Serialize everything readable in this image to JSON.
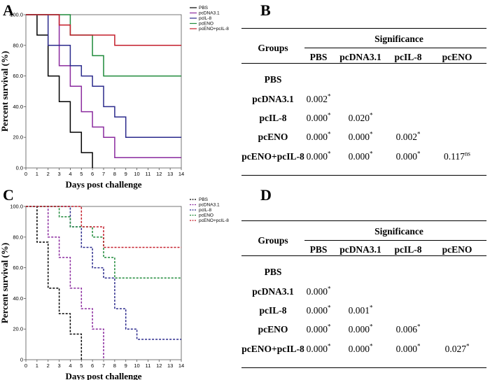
{
  "panels": {
    "A": "A",
    "B": "B",
    "C": "C",
    "D": "D"
  },
  "chart_data": [
    {
      "type": "line",
      "panel": "A",
      "style": "solid",
      "xlabel": "Days post challenge",
      "ylabel": "Percent survival (%)",
      "xlim": [
        0,
        14
      ],
      "ylim": [
        0,
        100
      ],
      "xticks": [
        "0",
        "1",
        "2",
        "3",
        "4",
        "5",
        "6",
        "7",
        "8",
        "9",
        "10",
        "11",
        "12",
        "13",
        "14"
      ],
      "yticks": [
        "0.0",
        "20.0",
        "40.0",
        "60.0",
        "80.0",
        "100.0"
      ],
      "ytick_values": [
        0,
        20,
        40,
        60,
        80,
        100
      ],
      "series": [
        {
          "name": "PBS",
          "color": "#000000",
          "points": [
            [
              0,
              100
            ],
            [
              1,
              100
            ],
            [
              1,
              86.7
            ],
            [
              2,
              86.7
            ],
            [
              2,
              60
            ],
            [
              3,
              60
            ],
            [
              3,
              43.3
            ],
            [
              4,
              43.3
            ],
            [
              4,
              23.3
            ],
            [
              5,
              23.3
            ],
            [
              5,
              10
            ],
            [
              6,
              10
            ],
            [
              6,
              0
            ]
          ]
        },
        {
          "name": "pcDNA3.1",
          "color": "#8a2a9e",
          "points": [
            [
              0,
              100
            ],
            [
              3,
              100
            ],
            [
              3,
              66.7
            ],
            [
              4,
              66.7
            ],
            [
              4,
              53.3
            ],
            [
              5,
              53.3
            ],
            [
              5,
              36.7
            ],
            [
              6,
              36.7
            ],
            [
              6,
              26.7
            ],
            [
              7,
              26.7
            ],
            [
              7,
              20
            ],
            [
              8,
              20
            ],
            [
              8,
              6.7
            ],
            [
              14,
              6.7
            ]
          ]
        },
        {
          "name": "pcIL-8",
          "color": "#2b2a8c",
          "points": [
            [
              0,
              100
            ],
            [
              2,
              100
            ],
            [
              2,
              80
            ],
            [
              4,
              80
            ],
            [
              4,
              66.7
            ],
            [
              5,
              66.7
            ],
            [
              5,
              60
            ],
            [
              6,
              60
            ],
            [
              6,
              53.3
            ],
            [
              7,
              53.3
            ],
            [
              7,
              40
            ],
            [
              8,
              40
            ],
            [
              8,
              33.3
            ],
            [
              9,
              33.3
            ],
            [
              9,
              20
            ],
            [
              14,
              20
            ]
          ]
        },
        {
          "name": "pcENO",
          "color": "#1f8a3a",
          "points": [
            [
              0,
              100
            ],
            [
              4,
              100
            ],
            [
              4,
              86.7
            ],
            [
              6,
              86.7
            ],
            [
              6,
              73.3
            ],
            [
              7,
              73.3
            ],
            [
              7,
              60
            ],
            [
              14,
              60
            ]
          ]
        },
        {
          "name": "pcENO+pcIL-8",
          "color": "#c41e2b",
          "points": [
            [
              0,
              100
            ],
            [
              3,
              100
            ],
            [
              3,
              93.3
            ],
            [
              4,
              93.3
            ],
            [
              4,
              86.7
            ],
            [
              6,
              86.7
            ],
            [
              6,
              86.7
            ],
            [
              8,
              86.7
            ],
            [
              8,
              80
            ],
            [
              14,
              80
            ]
          ]
        }
      ]
    },
    {
      "type": "line",
      "panel": "C",
      "style": "dashed",
      "xlabel": "Days post challenge",
      "ylabel": "Percent survival (%)",
      "xlim": [
        0,
        14
      ],
      "ylim": [
        0,
        100
      ],
      "xticks": [
        "0",
        "1",
        "2",
        "3",
        "4",
        "5",
        "6",
        "7",
        "8",
        "9",
        "10",
        "11",
        "12",
        "13",
        "14"
      ],
      "yticks": [
        "0",
        "20.0",
        "40.0",
        "60.0",
        "80.0",
        "100.0"
      ],
      "ytick_values": [
        0,
        20,
        40,
        60,
        80,
        100
      ],
      "series": [
        {
          "name": "PBS",
          "color": "#000000",
          "points": [
            [
              0,
              100
            ],
            [
              1,
              100
            ],
            [
              1,
              76.7
            ],
            [
              2,
              76.7
            ],
            [
              2,
              46.7
            ],
            [
              3,
              46.7
            ],
            [
              3,
              30
            ],
            [
              4,
              30
            ],
            [
              4,
              16.7
            ],
            [
              5,
              16.7
            ],
            [
              5,
              0
            ]
          ]
        },
        {
          "name": "pcDNA3.1",
          "color": "#8a2a9e",
          "points": [
            [
              0,
              100
            ],
            [
              2,
              100
            ],
            [
              2,
              80
            ],
            [
              3,
              80
            ],
            [
              3,
              66.7
            ],
            [
              4,
              66.7
            ],
            [
              4,
              46.7
            ],
            [
              5,
              46.7
            ],
            [
              5,
              33.3
            ],
            [
              6,
              33.3
            ],
            [
              6,
              20
            ],
            [
              7,
              20
            ],
            [
              7,
              0
            ]
          ]
        },
        {
          "name": "pcIL-8",
          "color": "#2b2a8c",
          "points": [
            [
              0,
              100
            ],
            [
              4,
              100
            ],
            [
              4,
              86.7
            ],
            [
              5,
              86.7
            ],
            [
              5,
              73.3
            ],
            [
              6,
              73.3
            ],
            [
              6,
              60
            ],
            [
              7,
              60
            ],
            [
              7,
              53.3
            ],
            [
              8,
              53.3
            ],
            [
              8,
              33.3
            ],
            [
              9,
              33.3
            ],
            [
              9,
              20
            ],
            [
              10,
              20
            ],
            [
              10,
              13.3
            ],
            [
              14,
              13.3
            ]
          ]
        },
        {
          "name": "pcENO",
          "color": "#1f8a3a",
          "points": [
            [
              0,
              100
            ],
            [
              3,
              100
            ],
            [
              3,
              93.3
            ],
            [
              4,
              93.3
            ],
            [
              4,
              86.7
            ],
            [
              6,
              86.7
            ],
            [
              6,
              80
            ],
            [
              7,
              80
            ],
            [
              7,
              66.7
            ],
            [
              8,
              66.7
            ],
            [
              8,
              53.3
            ],
            [
              14,
              53.3
            ]
          ]
        },
        {
          "name": "pcENO+pcIL-8",
          "color": "#c41e2b",
          "points": [
            [
              0,
              100
            ],
            [
              5,
              100
            ],
            [
              5,
              86.7
            ],
            [
              7,
              86.7
            ],
            [
              7,
              73.3
            ],
            [
              14,
              73.3
            ]
          ]
        }
      ]
    },
    {
      "type": "table",
      "panel": "B",
      "header_groups": "Groups",
      "header_significance": "Significance",
      "columns": [
        "PBS",
        "pcDNA3.1",
        "pcIL-8",
        "pcENO"
      ],
      "rows": [
        {
          "group": "PBS",
          "cells": []
        },
        {
          "group": "pcDNA3.1",
          "cells": [
            {
              "v": "0.002",
              "m": "*"
            }
          ]
        },
        {
          "group": "pcIL-8",
          "cells": [
            {
              "v": "0.000",
              "m": "*"
            },
            {
              "v": "0.020",
              "m": "*"
            }
          ]
        },
        {
          "group": "pcENO",
          "cells": [
            {
              "v": "0.000",
              "m": "*"
            },
            {
              "v": "0.000",
              "m": "*"
            },
            {
              "v": "0.002",
              "m": "*"
            }
          ]
        },
        {
          "group": "pcENO+pcIL-8",
          "cells": [
            {
              "v": "0.000",
              "m": "*"
            },
            {
              "v": "0.000",
              "m": "*"
            },
            {
              "v": "0.000",
              "m": "*"
            },
            {
              "v": "0.117",
              "m": "ns"
            }
          ]
        }
      ]
    },
    {
      "type": "table",
      "panel": "D",
      "header_groups": "Groups",
      "header_significance": "Significance",
      "columns": [
        "PBS",
        "pcDNA3.1",
        "pcIL-8",
        "pcENO"
      ],
      "rows": [
        {
          "group": "PBS",
          "cells": []
        },
        {
          "group": "pcDNA3.1",
          "cells": [
            {
              "v": "0.000",
              "m": "*"
            }
          ]
        },
        {
          "group": "pcIL-8",
          "cells": [
            {
              "v": "0.000",
              "m": "*"
            },
            {
              "v": "0.001",
              "m": "*"
            }
          ]
        },
        {
          "group": "pcENO",
          "cells": [
            {
              "v": "0.000",
              "m": "*"
            },
            {
              "v": "0.000",
              "m": "*"
            },
            {
              "v": "0.006",
              "m": "*"
            }
          ]
        },
        {
          "group": "pcENO+pcIL-8",
          "cells": [
            {
              "v": "0.000",
              "m": "*"
            },
            {
              "v": "0.000",
              "m": "*"
            },
            {
              "v": "0.000",
              "m": "*"
            },
            {
              "v": "0.027",
              "m": "*"
            }
          ]
        }
      ]
    }
  ]
}
